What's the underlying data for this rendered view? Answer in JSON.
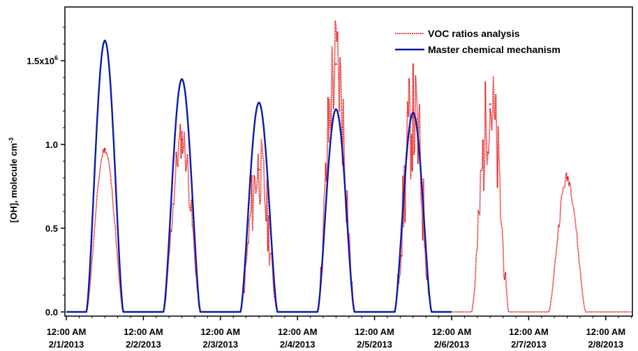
{
  "chart_data": {
    "type": "line",
    "title": "",
    "xlabel": "",
    "ylabel": "[OH], molecule cm",
    "ylabel_superscript": "-3",
    "ylim": [
      0,
      1.75
    ],
    "y_unit_multiplier": 1000000,
    "xlim": [
      "2/1/2013 -0.5d",
      "2/8/2013 +0.6d"
    ],
    "grid": false,
    "legend_position": "top-right",
    "y_ticks": [
      {
        "value": 0.0,
        "label": "0.0"
      },
      {
        "value": 0.5,
        "label": "0.5"
      },
      {
        "value": 1.0,
        "label": "1.0"
      },
      {
        "value": 1.5,
        "label": "1.5x10",
        "sup": "6"
      }
    ],
    "x_ticks": [
      {
        "day": 1,
        "time": "12:00 AM",
        "date": "2/1/2013"
      },
      {
        "day": 2,
        "time": "12:00 AM",
        "date": "2/2/2013"
      },
      {
        "day": 3,
        "time": "12:00 AM",
        "date": "2/3/2013"
      },
      {
        "day": 4,
        "time": "12:00 AM",
        "date": "2/4/2013"
      },
      {
        "day": 5,
        "time": "12:00 AM",
        "date": "2/5/2013"
      },
      {
        "day": 6,
        "time": "12:00 AM",
        "date": "2/6/2013"
      },
      {
        "day": 7,
        "time": "12:00 AM",
        "date": "2/7/2013"
      },
      {
        "day": 8,
        "time": "12:00 AM",
        "date": "2/8/2013"
      }
    ],
    "series": [
      {
        "name": "VOC ratios analysis",
        "color": "#e31a1c",
        "style": "dotted",
        "daily_peaks": [
          {
            "date": "2/1/2013",
            "peak": 0.97,
            "noise": 0.02
          },
          {
            "date": "2/2/2013",
            "peak": 1.03,
            "noise": 0.12
          },
          {
            "date": "2/3/2013",
            "peak": 0.85,
            "noise": 0.22
          },
          {
            "date": "2/4/2013",
            "peak": 1.48,
            "noise": 0.35
          },
          {
            "date": "2/5/2013",
            "peak": 1.16,
            "noise": 0.35
          },
          {
            "date": "2/6/2013",
            "peak": 1.24,
            "noise": 0.3
          },
          {
            "date": "2/7/2013",
            "peak": 0.8,
            "noise": 0.04
          }
        ]
      },
      {
        "name": "Master chemical mechanism",
        "color": "#0b1aa8",
        "style": "solid",
        "daily_peaks": [
          {
            "date": "2/1/2013",
            "peak": 1.62
          },
          {
            "date": "2/2/2013",
            "peak": 1.39
          },
          {
            "date": "2/3/2013",
            "peak": 1.25
          },
          {
            "date": "2/4/2013",
            "peak": 1.21
          },
          {
            "date": "2/5/2013",
            "peak": 1.19
          }
        ]
      }
    ]
  }
}
